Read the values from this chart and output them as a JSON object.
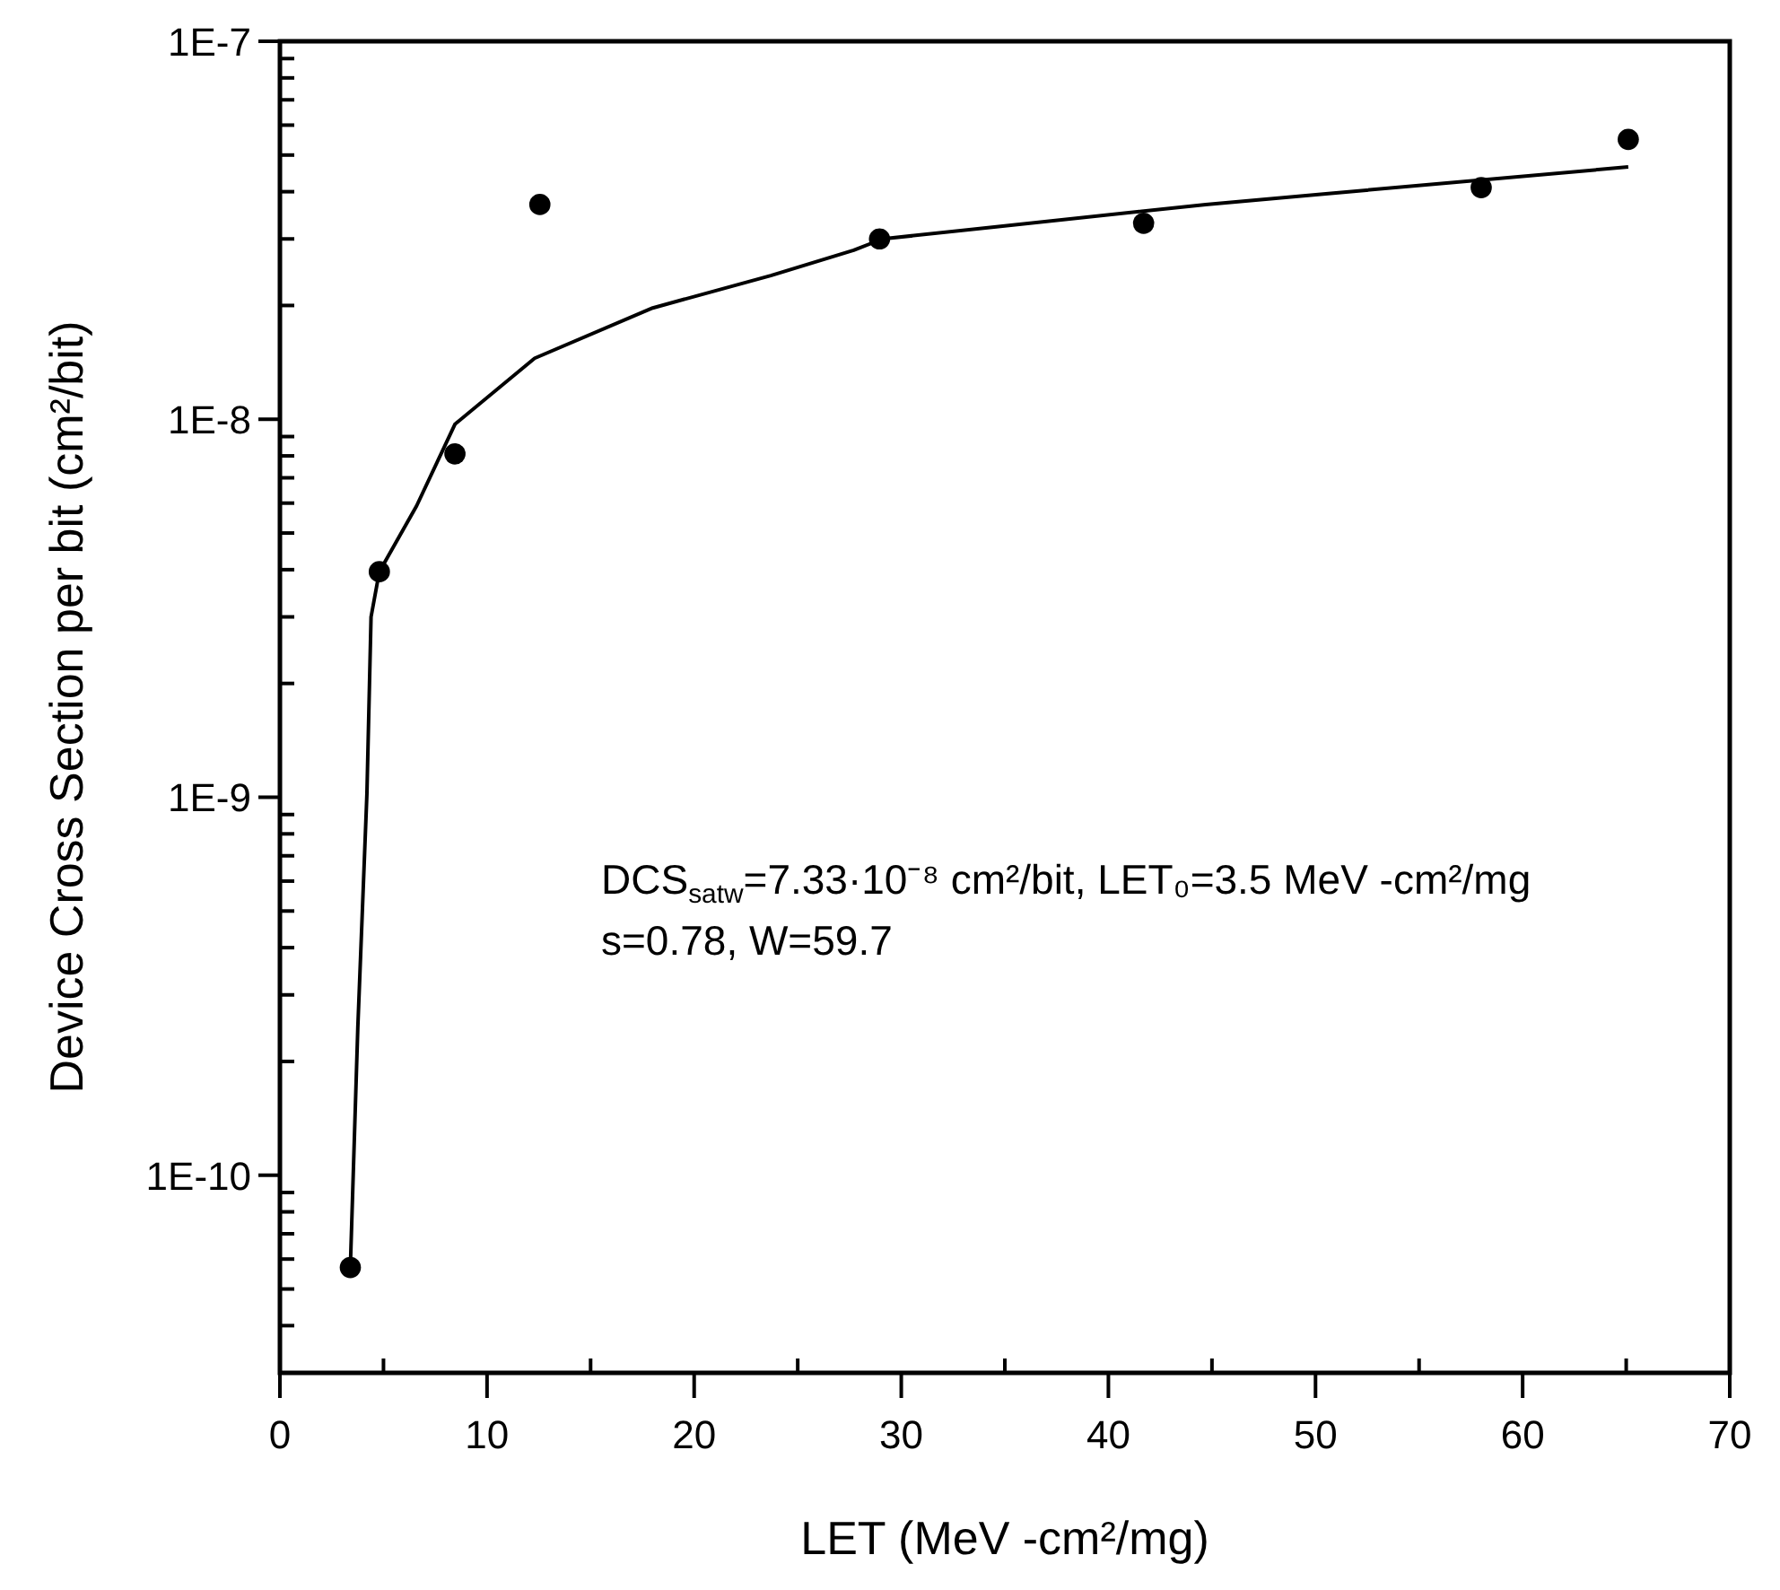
{
  "chart_data": {
    "type": "scatter",
    "xlabel": "LET (MeV -cm²/mg)",
    "ylabel": "Device Cross Section per bit (cm²/bit)",
    "log": "y",
    "xlim": [
      0,
      70
    ],
    "ylim": [
      3e-11,
      1e-07
    ],
    "xticks": [
      0,
      {
        "value": 5,
        "label": null
      },
      10,
      {
        "value": 15,
        "label": null
      },
      20,
      {
        "value": 25,
        "label": null
      },
      30,
      {
        "value": 35,
        "label": null
      },
      40,
      {
        "value": 45,
        "label": null
      },
      50,
      {
        "value": 55,
        "label": null
      },
      60,
      {
        "value": 65,
        "label": null
      },
      70
    ],
    "yticks": [
      {
        "value": 4e-11,
        "label": null
      },
      {
        "value": 5e-11,
        "label": null
      },
      {
        "value": 6e-11,
        "label": null
      },
      {
        "value": 7e-11,
        "label": null
      },
      {
        "value": 8e-11,
        "label": null
      },
      {
        "value": 9e-11,
        "label": null
      },
      {
        "value": 1e-10,
        "label": "1E-10"
      },
      {
        "value": 2e-10,
        "label": null
      },
      {
        "value": 3e-10,
        "label": null
      },
      {
        "value": 4e-10,
        "label": null
      },
      {
        "value": 5e-10,
        "label": null
      },
      {
        "value": 6e-10,
        "label": null
      },
      {
        "value": 7e-10,
        "label": null
      },
      {
        "value": 8e-10,
        "label": null
      },
      {
        "value": 9e-10,
        "label": null
      },
      {
        "value": 1e-09,
        "label": "1E-9"
      },
      {
        "value": 2e-09,
        "label": null
      },
      {
        "value": 3e-09,
        "label": null
      },
      {
        "value": 4e-09,
        "label": null
      },
      {
        "value": 5e-09,
        "label": null
      },
      {
        "value": 6e-09,
        "label": null
      },
      {
        "value": 7e-09,
        "label": null
      },
      {
        "value": 8e-09,
        "label": null
      },
      {
        "value": 9e-09,
        "label": null
      },
      {
        "value": 1e-08,
        "label": "1E-8"
      },
      {
        "value": 2e-08,
        "label": null
      },
      {
        "value": 3e-08,
        "label": null
      },
      {
        "value": 4e-08,
        "label": null
      },
      {
        "value": 5e-08,
        "label": null
      },
      {
        "value": 6e-08,
        "label": null
      },
      {
        "value": 7e-08,
        "label": null
      },
      {
        "value": 8e-08,
        "label": null
      },
      {
        "value": 9e-08,
        "label": null
      },
      {
        "value": 1e-07,
        "label": "1E-7"
      }
    ],
    "series": [
      {
        "type": "scatter",
        "color": "#000000",
        "marker": "circle",
        "x": [
          3.4,
          4.8,
          8.45,
          12.55,
          28.95,
          41.7,
          58.0,
          65.1
        ],
        "values": [
          5.7e-11,
          3.95e-09,
          8.1e-09,
          3.7e-08,
          3e-08,
          3.3e-08,
          4.1e-08,
          5.5e-08
        ]
      },
      {
        "type": "line",
        "color": "#000000",
        "marker": "none",
        "x": [
          3.4,
          3.76,
          4.2,
          4.4,
          4.8,
          6.6,
          8.45,
          12.3,
          18.0,
          23.7,
          27.7,
          29.1,
          44.7,
          50.5,
          65.1
        ],
        "values": [
          5.7e-11,
          2.45e-10,
          1.02e-09,
          3e-09,
          3.95e-09,
          5.9e-09,
          9.7e-09,
          1.45e-08,
          1.97e-08,
          2.4e-08,
          2.8e-08,
          3e-08,
          3.7e-08,
          3.95e-08,
          4.65e-08
        ]
      }
    ],
    "annotations": [
      "DCS$_{satw}$=7.33·10⁻⁸ cm²/bit, LET₀=3.5 MeV -cm²/mg",
      "s=0.78, W=59.7"
    ]
  }
}
